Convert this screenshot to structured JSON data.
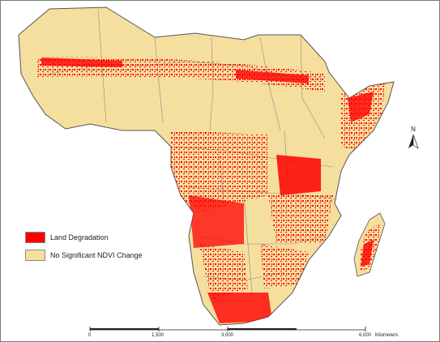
{
  "colors": {
    "land_degradation": "#ff0000",
    "no_change": "#f5df9e",
    "border": "#666666"
  },
  "legend": {
    "items": [
      {
        "label": "Land Degradation",
        "color": "#ff0000"
      },
      {
        "label": "No Significant NDVI Change",
        "color": "#f5df9e"
      }
    ]
  },
  "north_arrow": {
    "label": "N"
  },
  "scale_bar": {
    "ticks": [
      "0",
      "1,500",
      "3,000",
      "6,000"
    ],
    "unit": "Kilometers"
  }
}
